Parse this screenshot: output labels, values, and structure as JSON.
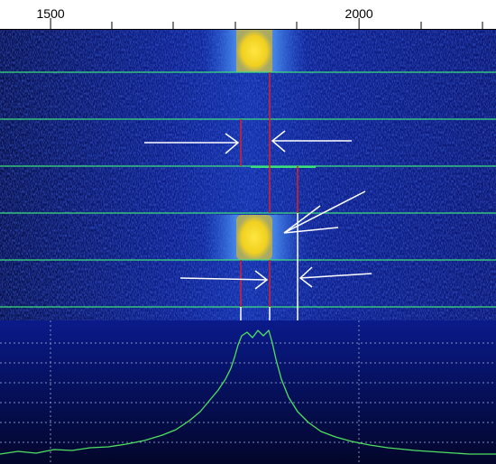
{
  "scale": {
    "xlim": [
      1418,
      2222
    ],
    "ticks": [
      1500,
      2000
    ]
  }
}
